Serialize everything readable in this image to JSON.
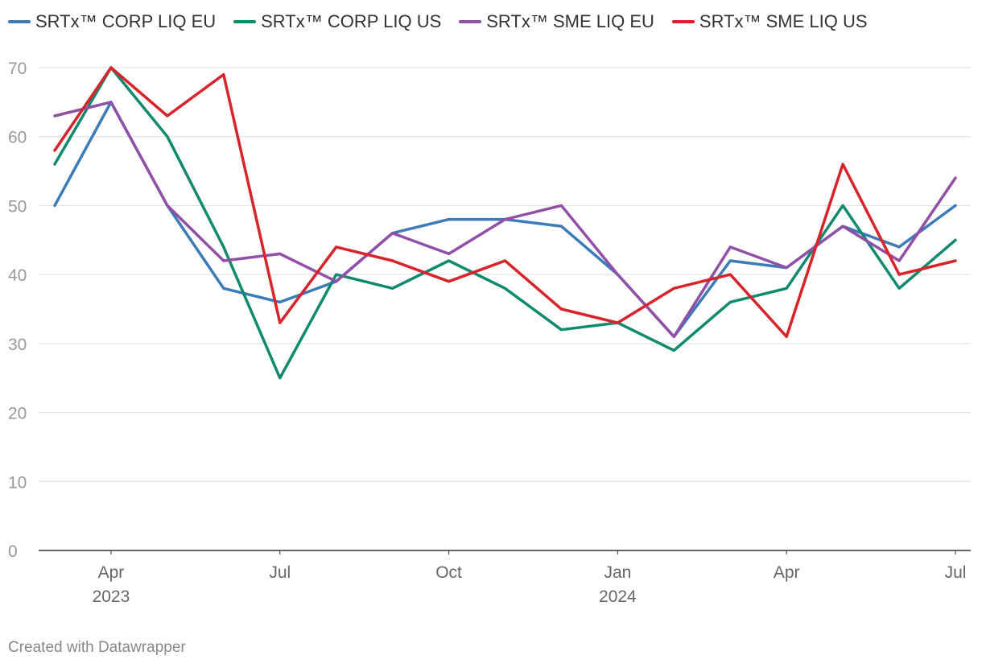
{
  "chart_data": {
    "type": "line",
    "x": [
      "2023-03",
      "2023-04",
      "2023-05",
      "2023-06",
      "2023-07",
      "2023-08",
      "2023-09",
      "2023-10",
      "2023-11",
      "2023-12",
      "2024-01",
      "2024-02",
      "2024-03",
      "2024-04",
      "2024-05",
      "2024-06",
      "2024-07"
    ],
    "series": [
      {
        "name": "SRTx™ CORP LIQ EU",
        "color": "#3a7bb8",
        "values": [
          50,
          65,
          50,
          38,
          36,
          39,
          46,
          48,
          48,
          47,
          40,
          31,
          42,
          41,
          47,
          44,
          50
        ]
      },
      {
        "name": "SRTx™ CORP LIQ US",
        "color": "#0f8a6e",
        "values": [
          56,
          70,
          60,
          44,
          25,
          40,
          38,
          42,
          38,
          32,
          33,
          29,
          36,
          38,
          50,
          38,
          45
        ]
      },
      {
        "name": "SRTx™ SME LIQ EU",
        "color": "#9150a6",
        "values": [
          63,
          65,
          50,
          42,
          43,
          39,
          46,
          43,
          48,
          50,
          40,
          31,
          44,
          41,
          47,
          42,
          54
        ]
      },
      {
        "name": "SRTx™ SME LIQ US",
        "color": "#d9232a",
        "values": [
          58,
          70,
          63,
          69,
          33,
          44,
          42,
          39,
          42,
          35,
          33,
          38,
          40,
          31,
          56,
          40,
          42
        ]
      }
    ],
    "ylim": [
      0,
      70
    ],
    "yticks": [
      "0",
      "10",
      "20",
      "30",
      "40",
      "50",
      "60",
      "70"
    ],
    "xticks": [
      {
        "x": "2023-04",
        "label": "Apr",
        "year": "2023"
      },
      {
        "x": "2023-07",
        "label": "Jul",
        "year": ""
      },
      {
        "x": "2023-10",
        "label": "Oct",
        "year": ""
      },
      {
        "x": "2024-01",
        "label": "Jan",
        "year": "2024"
      },
      {
        "x": "2024-04",
        "label": "Apr",
        "year": ""
      },
      {
        "x": "2024-07",
        "label": "Jul",
        "year": ""
      }
    ],
    "grid": true,
    "legend_position": "top-left"
  },
  "footer": "Created with Datawrapper"
}
